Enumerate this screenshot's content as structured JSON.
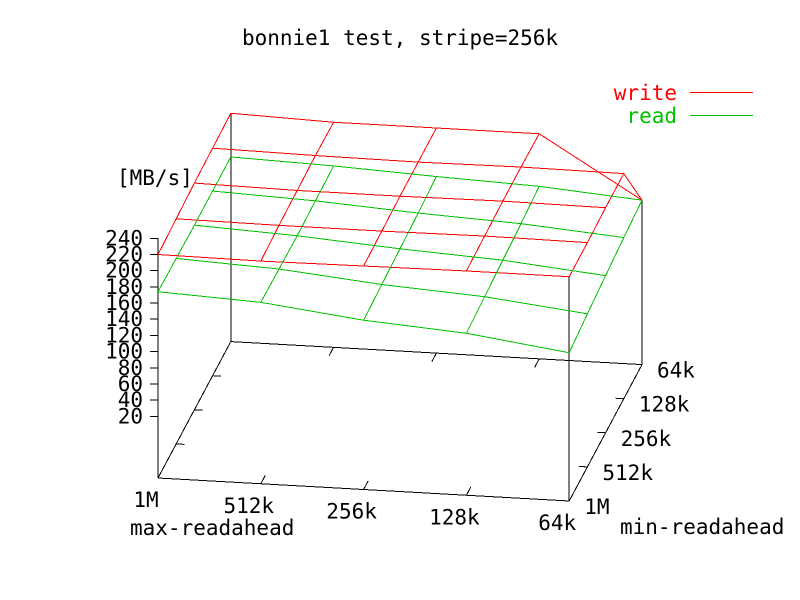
{
  "title": "bonnie1 test, stripe=256k",
  "z_unit_label": "[MB/s]",
  "x_axis": {
    "label": "max-readahead",
    "tick_labels": [
      "1M",
      "512k",
      "256k",
      "128k",
      "64k"
    ]
  },
  "y_axis": {
    "label": "min-readahead",
    "tick_labels": [
      "1M",
      "512k",
      "256k",
      "128k",
      "64k"
    ]
  },
  "z_axis": {
    "tick_labels": [
      "20",
      "40",
      "60",
      "80",
      "100",
      "120",
      "140",
      "160",
      "180",
      "200",
      "220",
      "240"
    ]
  },
  "legend": {
    "items": [
      {
        "label": "write",
        "color": "#ff0000"
      },
      {
        "label": "read",
        "color": "#00c000"
      }
    ]
  },
  "chart_data": {
    "type": "surface3d",
    "title": "bonnie1 test, stripe=256k",
    "x_categories": {
      "name": "max-readahead",
      "values": [
        "1M",
        "512k",
        "256k",
        "128k",
        "64k"
      ]
    },
    "y_categories": {
      "name": "min-readahead",
      "values": [
        "1M",
        "512k",
        "256k",
        "128k",
        "64k"
      ]
    },
    "z_label": "[MB/s]",
    "z_ticks": [
      20,
      40,
      60,
      80,
      100,
      120,
      140,
      160,
      180,
      200,
      220,
      240
    ],
    "z_range": [
      0,
      240
    ],
    "grid_note": "rows = min-readahead 1M(front) to 64k(back); cols = max-readahead 1M(left) to 64k(right)",
    "series": [
      {
        "name": "write",
        "color": "#ff0000",
        "z_values": [
          [
            220,
            219,
            220,
            221,
            221
          ],
          [
            222,
            221,
            221,
            222,
            221
          ],
          [
            224,
            222,
            222,
            223,
            222
          ],
          [
            225,
            223,
            222,
            223,
            222
          ],
          [
            226,
            222,
            222,
            222,
            147
          ]
        ]
      },
      {
        "name": "read",
        "color": "#00c000",
        "z_values": [
          [
            174,
            168,
            153,
            144,
            127
          ],
          [
            173,
            167,
            155,
            147,
            133
          ],
          [
            172,
            166,
            157,
            150,
            138
          ],
          [
            172,
            167,
            159,
            153,
            143
          ],
          [
            172,
            168,
            162,
            157,
            147
          ]
        ]
      }
    ]
  }
}
